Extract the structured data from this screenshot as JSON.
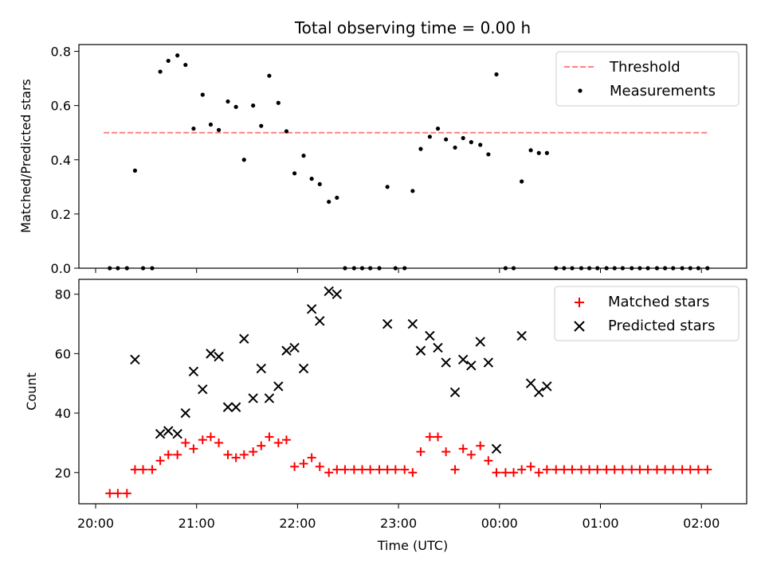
{
  "chart_data": {
    "type": "scatter",
    "title": "Total observing time = 0.00 h",
    "xlabel": "Time (UTC)",
    "xticks": [
      "20:00",
      "21:00",
      "22:00",
      "23:00",
      "00:00",
      "01:00",
      "02:00"
    ],
    "x_time_unit": "hours since 20:00 UTC",
    "panels": [
      {
        "ylabel": "Matched/Predicted stars",
        "ylim": [
          0,
          0.825
        ],
        "yticks": [
          "0.0",
          "0.2",
          "0.4",
          "0.6",
          "0.8"
        ],
        "series": [
          {
            "name": "Threshold",
            "kind": "dashed-line",
            "color": "#ff7f7f",
            "x": [
              0.08,
              6.07
            ],
            "y": [
              0.5,
              0.5
            ]
          },
          {
            "name": "Measurements",
            "kind": "dot",
            "color": "#000000",
            "x": [
              0.14,
              0.22,
              0.31,
              0.39,
              0.47,
              0.56,
              0.64,
              0.72,
              0.81,
              0.89,
              0.97,
              1.06,
              1.14,
              1.22,
              1.31,
              1.39,
              1.47,
              1.56,
              1.64,
              1.72,
              1.81,
              1.89,
              1.97,
              2.06,
              2.14,
              2.22,
              2.31,
              2.39,
              2.47,
              2.56,
              2.64,
              2.72,
              2.81,
              2.89,
              2.97,
              3.06,
              3.14,
              3.22,
              3.31,
              3.39,
              3.47,
              3.56,
              3.64,
              3.72,
              3.81,
              3.89,
              3.97,
              4.06,
              4.14,
              4.22,
              4.31,
              4.39,
              4.47,
              4.56,
              4.64,
              4.72,
              4.81,
              4.89,
              4.97,
              5.06,
              5.14,
              5.22,
              5.31,
              5.39,
              5.47,
              5.56,
              5.64,
              5.72,
              5.81,
              5.89,
              5.97,
              6.06
            ],
            "y": [
              0,
              0,
              0,
              0.36,
              0,
              0,
              0.725,
              0.765,
              0.785,
              0.75,
              0.515,
              0.64,
              0.53,
              0.51,
              0.615,
              0.595,
              0.4,
              0.6,
              0.525,
              0.71,
              0.61,
              0.505,
              0.35,
              0.415,
              0.33,
              0.31,
              0.245,
              0.26,
              0,
              0,
              0,
              0,
              0,
              0.3,
              0,
              0,
              0.285,
              0.44,
              0.485,
              0.515,
              0.475,
              0.445,
              0.48,
              0.465,
              0.455,
              0.42,
              0.715,
              0,
              0,
              0.32,
              0.435,
              0.425,
              0.425,
              0,
              0,
              0,
              0,
              0,
              0,
              0,
              0,
              0,
              0,
              0,
              0,
              0,
              0,
              0,
              0,
              0,
              0,
              0
            ]
          }
        ]
      },
      {
        "ylabel": "Count",
        "ylim": [
          9.5,
          85
        ],
        "yticks": [
          "20",
          "40",
          "60",
          "80"
        ],
        "series": [
          {
            "name": "Matched stars",
            "kind": "plus",
            "color": "#ff0000",
            "x": [
              0.14,
              0.22,
              0.31,
              0.39,
              0.47,
              0.56,
              0.64,
              0.72,
              0.81,
              0.89,
              0.97,
              1.06,
              1.14,
              1.22,
              1.31,
              1.39,
              1.47,
              1.56,
              1.64,
              1.72,
              1.81,
              1.89,
              1.97,
              2.06,
              2.14,
              2.22,
              2.31,
              2.39,
              2.47,
              2.56,
              2.64,
              2.72,
              2.81,
              2.89,
              2.97,
              3.06,
              3.14,
              3.22,
              3.31,
              3.39,
              3.47,
              3.56,
              3.64,
              3.72,
              3.81,
              3.89,
              3.97,
              4.06,
              4.14,
              4.22,
              4.31,
              4.39,
              4.47,
              4.56,
              4.64,
              4.72,
              4.81,
              4.89,
              4.97,
              5.06,
              5.14,
              5.22,
              5.31,
              5.39,
              5.47,
              5.56,
              5.64,
              5.72,
              5.81,
              5.89,
              5.97,
              6.06
            ],
            "y": [
              13,
              13,
              13,
              21,
              21,
              21,
              24,
              26,
              26,
              30,
              28,
              31,
              32,
              30,
              26,
              25,
              26,
              27,
              29,
              32,
              30,
              31,
              22,
              23,
              25,
              22,
              20,
              21,
              21,
              21,
              21,
              21,
              21,
              21,
              21,
              21,
              20,
              27,
              32,
              32,
              27,
              21,
              28,
              26,
              29,
              24,
              20,
              20,
              20,
              21,
              22,
              20,
              21,
              21,
              21,
              21,
              21,
              21,
              21,
              21,
              21,
              21,
              21,
              21,
              21,
              21,
              21,
              21,
              21,
              21,
              21,
              21
            ]
          },
          {
            "name": "Predicted stars",
            "kind": "x",
            "color": "#000000",
            "x": [
              0.39,
              0.64,
              0.72,
              0.81,
              0.89,
              0.97,
              1.06,
              1.14,
              1.22,
              1.31,
              1.39,
              1.47,
              1.56,
              1.64,
              1.72,
              1.81,
              1.89,
              1.97,
              2.06,
              2.14,
              2.22,
              2.31,
              2.39,
              2.89,
              3.14,
              3.22,
              3.31,
              3.39,
              3.47,
              3.56,
              3.64,
              3.72,
              3.81,
              3.89,
              3.97,
              4.22,
              4.31,
              4.39,
              4.47
            ],
            "y": [
              58,
              33,
              34,
              33,
              40,
              54,
              48,
              60,
              59,
              42,
              42,
              65,
              45,
              55,
              45,
              49,
              61,
              62,
              55,
              75,
              71,
              81,
              80,
              70,
              70,
              61,
              66,
              62,
              57,
              47,
              58,
              56,
              64,
              57,
              28,
              66,
              50,
              47,
              49
            ]
          }
        ]
      }
    ]
  }
}
